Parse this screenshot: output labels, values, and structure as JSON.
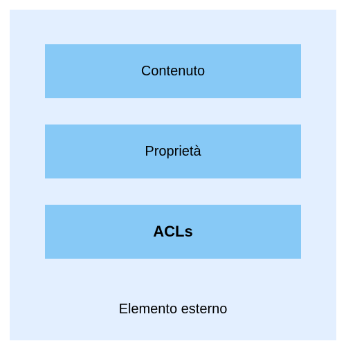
{
  "diagram": {
    "type": "infographic",
    "background_color": "#ffffff",
    "outer": {
      "label": "Elemento esterno",
      "background_color": "#e3efff",
      "label_fontsize": 20,
      "label_color": "#000000"
    },
    "boxes": [
      {
        "label": "Contenuto",
        "background_color": "#87c9f6",
        "fontsize": 20,
        "font_weight": "400"
      },
      {
        "label": "Proprietà",
        "background_color": "#87c9f6",
        "fontsize": 20,
        "font_weight": "400"
      },
      {
        "label": "ACLs",
        "background_color": "#87c9f6",
        "fontsize": 22,
        "font_weight": "700"
      }
    ]
  }
}
